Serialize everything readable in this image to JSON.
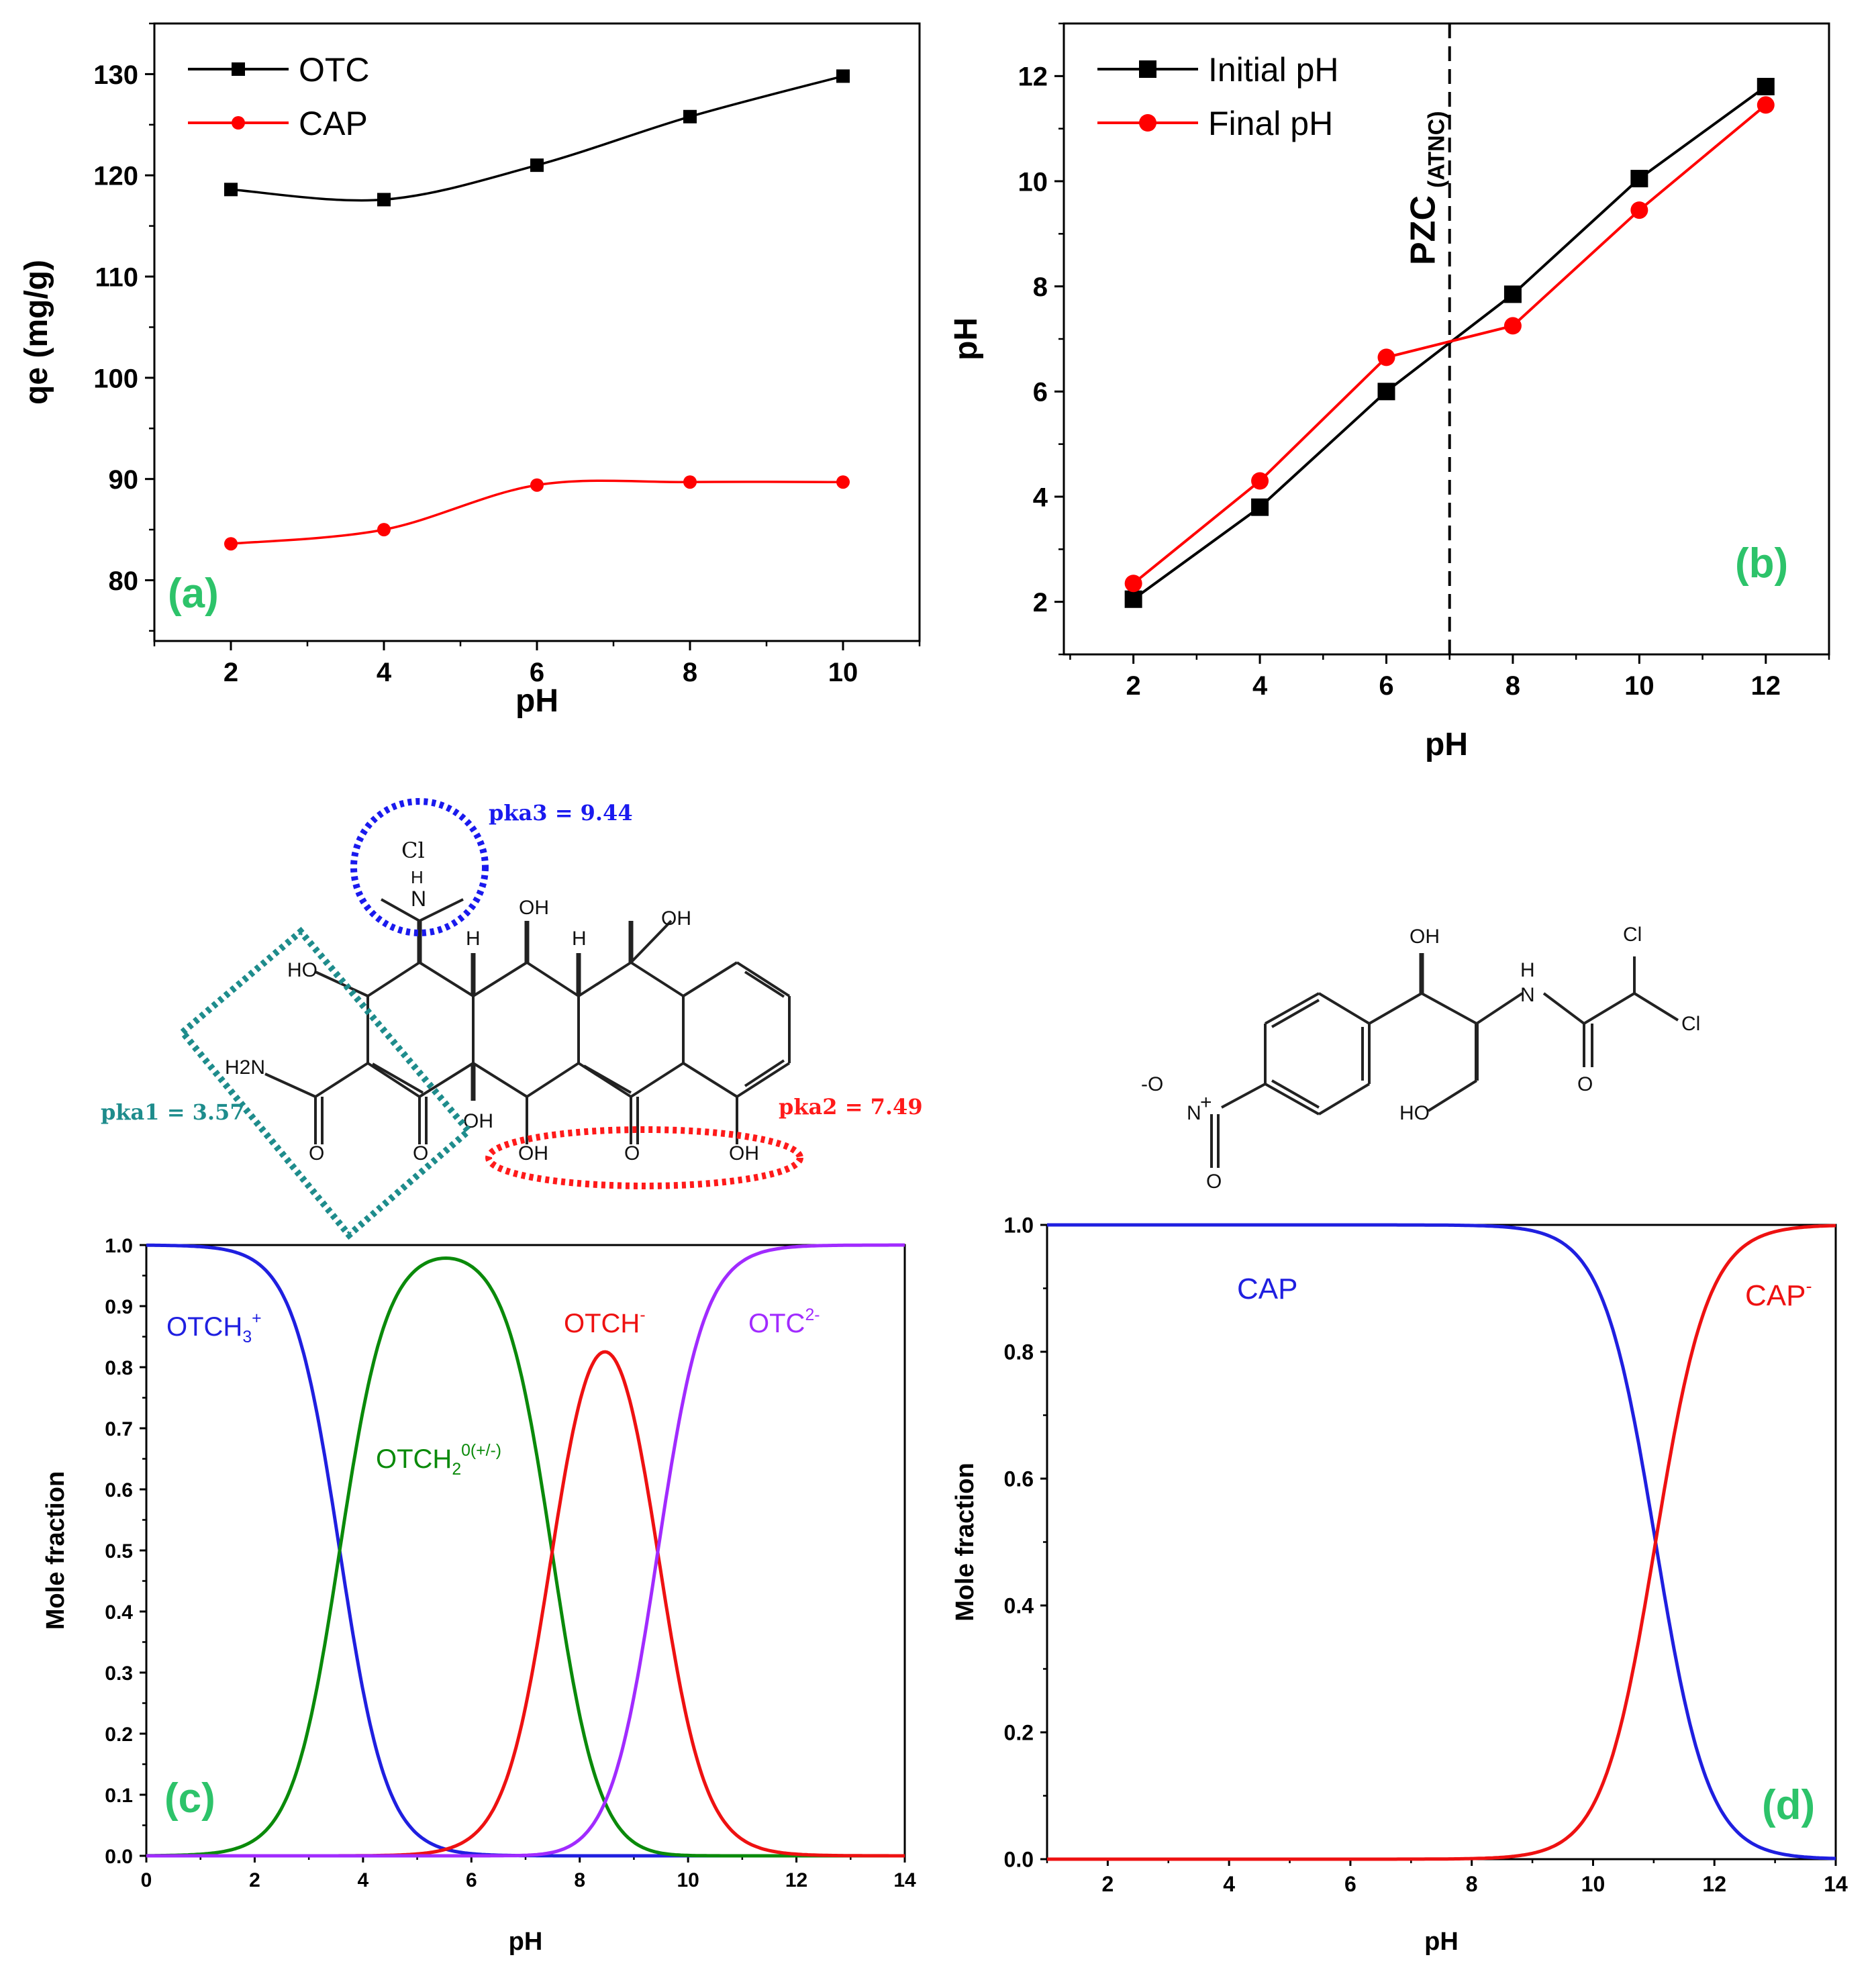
{
  "chart_data": [
    {
      "id": "a",
      "type": "line",
      "panel_label": "(a)",
      "xlabel": "pH",
      "ylabel": "qe (mg/g)",
      "xlim": [
        1.0,
        11.0
      ],
      "ylim": [
        74,
        135
      ],
      "xticks": [
        2,
        4,
        6,
        8,
        10
      ],
      "yticks": [
        80,
        90,
        100,
        110,
        120,
        130
      ],
      "legend": "top-left",
      "series": [
        {
          "name": "OTC",
          "color": "#000000",
          "marker": "square",
          "smooth": true,
          "x": [
            2,
            4,
            6,
            8,
            10
          ],
          "y": [
            118.6,
            117.6,
            121.0,
            125.8,
            129.8
          ]
        },
        {
          "name": "CAP",
          "color": "#ff0000",
          "marker": "circle",
          "smooth": true,
          "x": [
            2,
            4,
            6,
            8,
            10
          ],
          "y": [
            83.6,
            85.0,
            89.4,
            89.7,
            89.7
          ]
        }
      ]
    },
    {
      "id": "b",
      "type": "line",
      "panel_label": "(b)",
      "xlabel": "pH",
      "ylabel": "pH",
      "xlim": [
        0.9,
        13.0
      ],
      "ylim": [
        1.0,
        13.0
      ],
      "xticks": [
        2,
        4,
        6,
        8,
        10,
        12
      ],
      "yticks": [
        2,
        4,
        6,
        8,
        10,
        12
      ],
      "legend": "top-left",
      "vline": {
        "x": 7,
        "label": "PZC",
        "label_sub": "(ATNC)"
      },
      "series": [
        {
          "name": "Initial pH",
          "color": "#000000",
          "marker": "square",
          "x": [
            2,
            4,
            6,
            8,
            10,
            12
          ],
          "y": [
            2.05,
            3.8,
            6.0,
            7.85,
            10.05,
            11.8
          ]
        },
        {
          "name": "Final pH",
          "color": "#ff0000",
          "marker": "circle",
          "x": [
            2,
            4,
            6,
            8,
            10,
            12
          ],
          "y": [
            2.35,
            4.3,
            6.65,
            7.25,
            9.45,
            11.45
          ]
        }
      ]
    },
    {
      "id": "c",
      "type": "line",
      "panel_label": "(c)",
      "xlabel": "pH",
      "ylabel": "Mole fraction",
      "xlim": [
        0,
        14
      ],
      "ylim": [
        0,
        1.0
      ],
      "xticks": [
        0,
        2,
        4,
        6,
        8,
        10,
        12,
        14
      ],
      "yticks": [
        0.0,
        0.1,
        0.2,
        0.3,
        0.4,
        0.5,
        0.6,
        0.7,
        0.8,
        0.9,
        1.0
      ],
      "speciation": {
        "pka": [
          3.57,
          7.49,
          9.44
        ]
      },
      "series": [
        {
          "name": "OTCH3+",
          "color": "#1f1fe0",
          "species": 0
        },
        {
          "name": "OTCH2 0(+/-)",
          "color": "#0a8a0a",
          "species": 1
        },
        {
          "name": "OTCH-",
          "color": "#ee1111",
          "species": 2
        },
        {
          "name": "OTC2-",
          "color": "#a12bff",
          "species": 3
        }
      ],
      "annotations": [
        {
          "text": "OTCH",
          "sub": "3",
          "sup": "+",
          "color": "#1f1fe0"
        },
        {
          "text": "OTCH",
          "sub": "2",
          "sup": "0(+/-)",
          "color": "#0a8a0a"
        },
        {
          "text": "OTCH",
          "sup": "-",
          "color": "#ee1111"
        },
        {
          "text": "OTC",
          "sup": "2-",
          "color": "#a12bff"
        }
      ]
    },
    {
      "id": "d",
      "type": "line",
      "panel_label": "(d)",
      "xlabel": "pH",
      "ylabel": "Mole fraction",
      "xlim": [
        1,
        14
      ],
      "ylim": [
        0,
        1.0
      ],
      "xticks": [
        2,
        4,
        6,
        8,
        10,
        12,
        14
      ],
      "yticks": [
        0.0,
        0.2,
        0.4,
        0.6,
        0.8,
        1.0
      ],
      "speciation": {
        "pka": [
          11.03
        ]
      },
      "series": [
        {
          "name": "CAP",
          "color": "#1f1fe0",
          "species": 0
        },
        {
          "name": "CAP-",
          "color": "#ee1111",
          "species": 1
        }
      ],
      "annotations": [
        {
          "text": "CAP",
          "color": "#1f1fe0"
        },
        {
          "text": "CAP",
          "sup": "-",
          "color": "#ee1111"
        }
      ]
    }
  ],
  "structures": {
    "otc": {
      "pka1": "pka1 = 3.57",
      "pka2": "pka2 = 7.49",
      "pka3": "pka3 = 9.44",
      "labels": {
        "cl": "Cl",
        "n": "N",
        "h": "H",
        "oh": "OH",
        "ho": "HO",
        "o": "O",
        "h2n": "H2N"
      },
      "colors": {
        "pka1": "#1e8c8c",
        "pka2": "#ff1a1a",
        "pka3": "#1a1aee"
      }
    },
    "cap": {
      "labels": {
        "oh": "OH",
        "ho": "HO",
        "nh_h": "H",
        "nh_n": "N",
        "cl": "Cl",
        "o": "O",
        "n": "N",
        "no_o_minus": "-O",
        "no_plus": "+"
      }
    }
  },
  "panel_label_color": "#2dc36a"
}
